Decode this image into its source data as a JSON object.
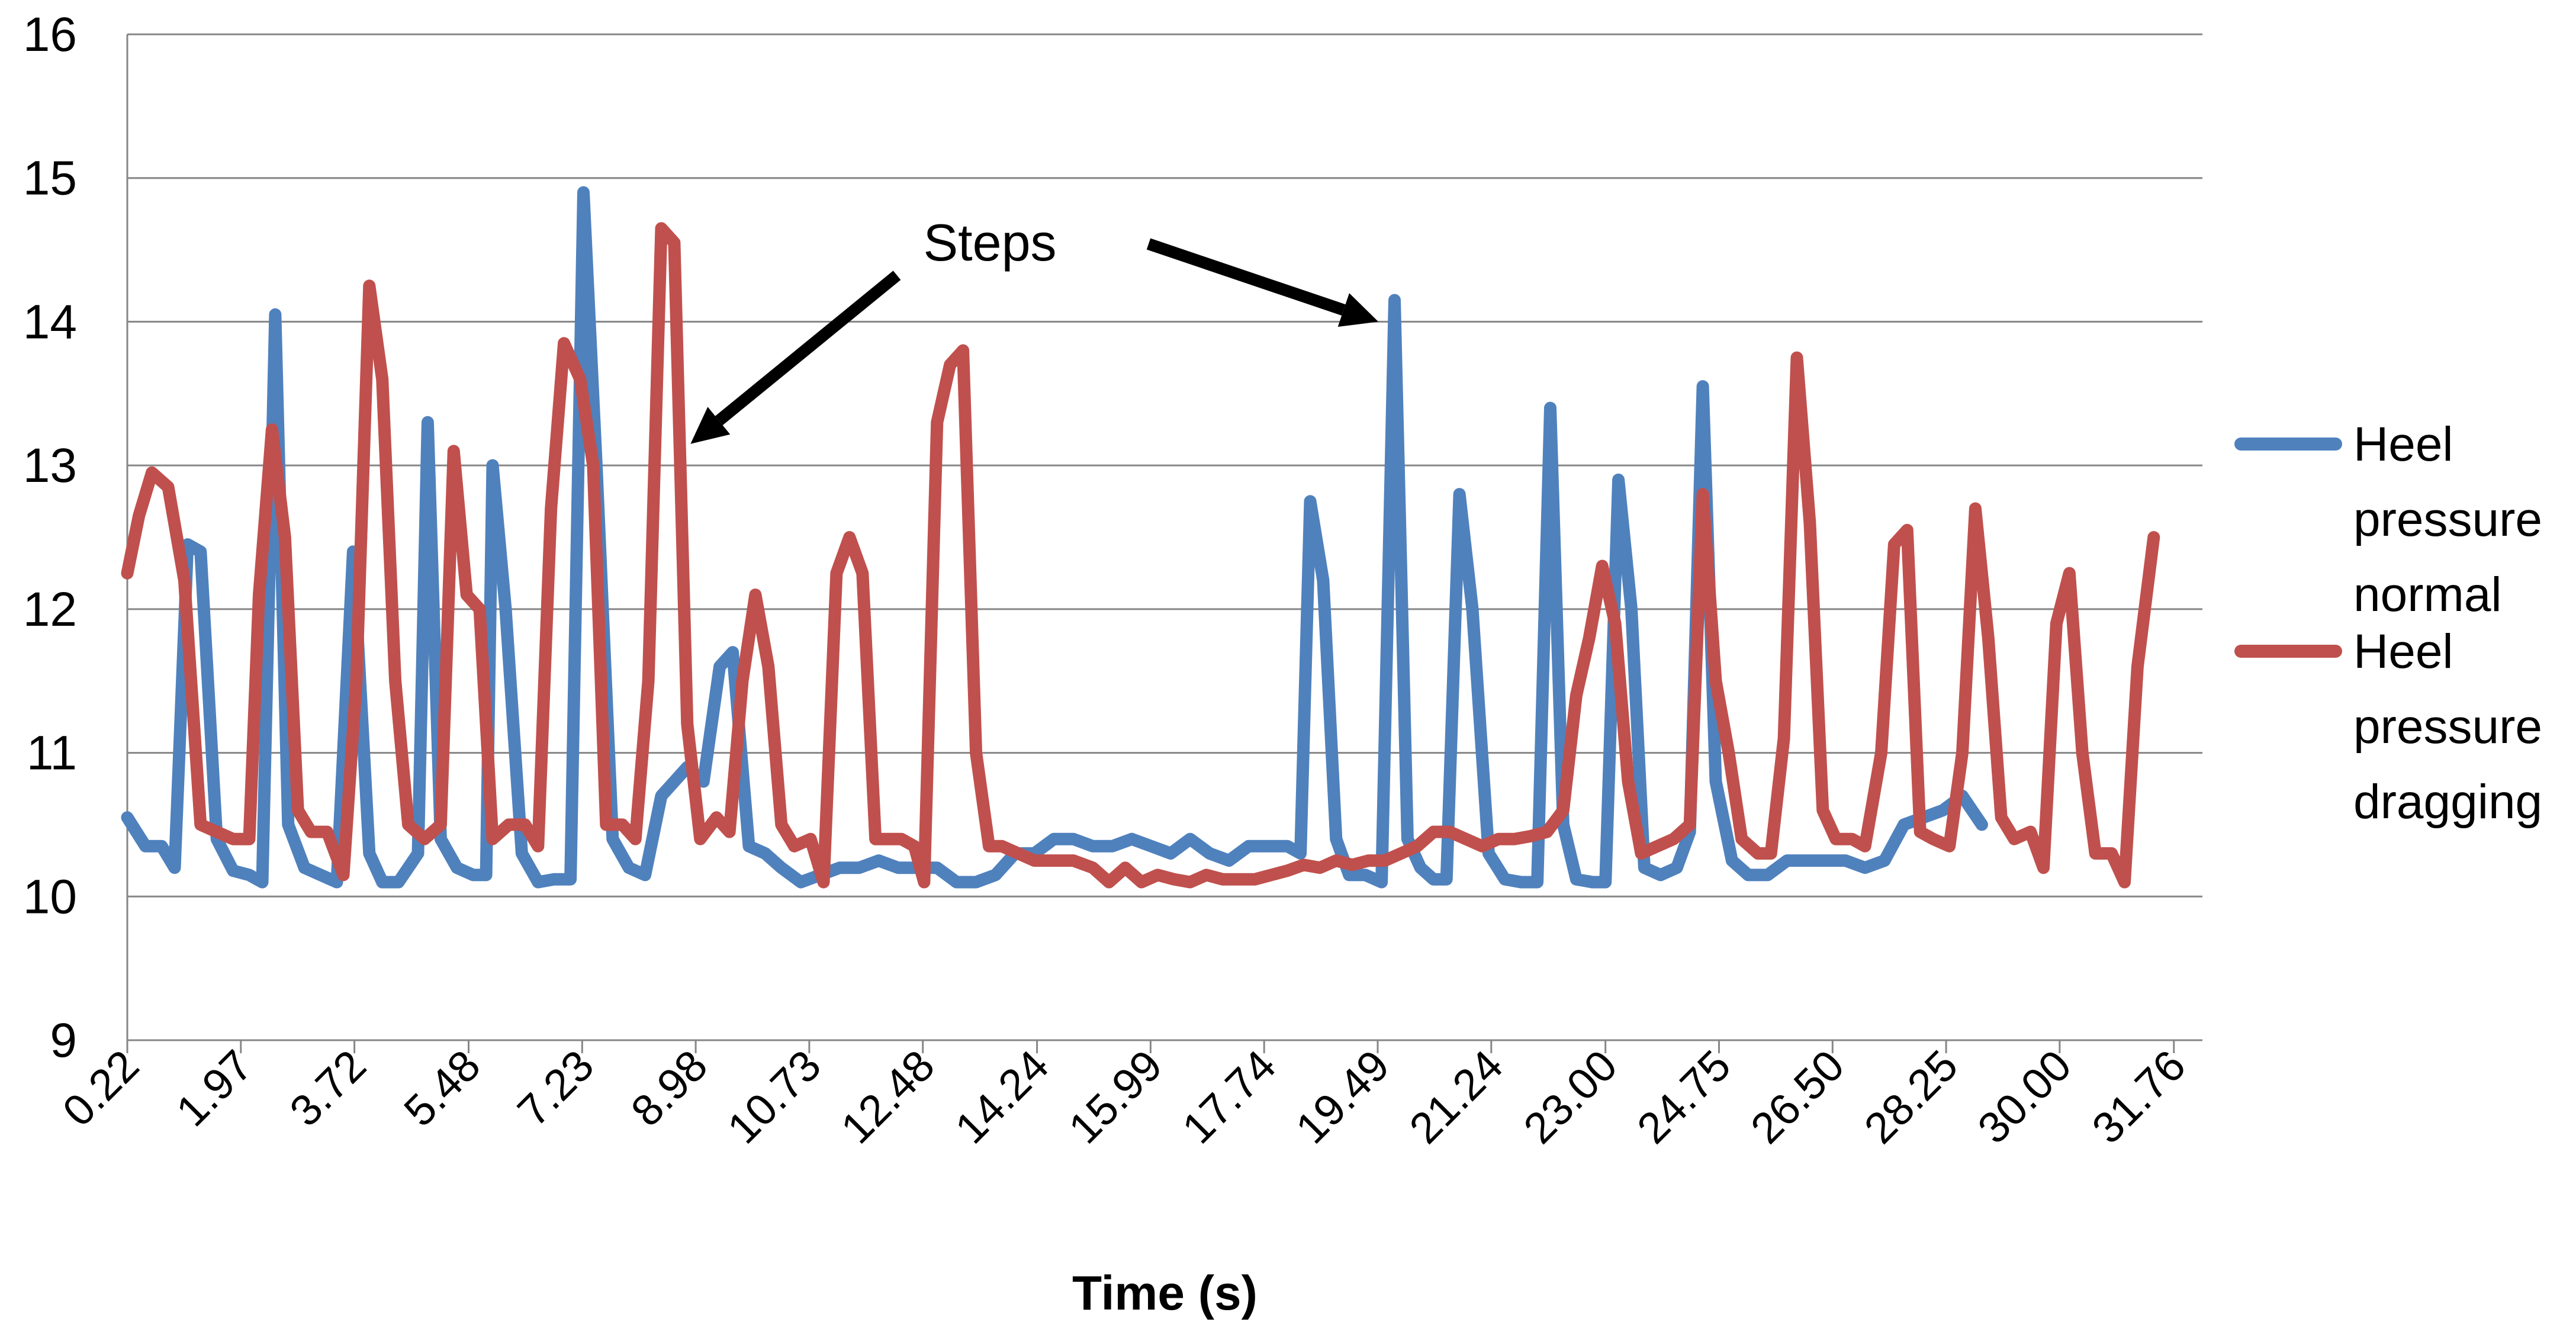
{
  "chart_data": {
    "type": "line",
    "title": "",
    "xlabel": "Time (s)",
    "ylabel": "",
    "ylim": [
      9,
      16
    ],
    "yticks": [
      "9",
      "10",
      "11",
      "12",
      "13",
      "14",
      "15",
      "16"
    ],
    "xlim": [
      0.22,
      32.2
    ],
    "xtick_values": [
      0.22,
      1.97,
      3.72,
      5.48,
      7.23,
      8.98,
      10.73,
      12.48,
      14.24,
      15.99,
      17.74,
      19.49,
      21.24,
      23.0,
      24.75,
      26.5,
      28.25,
      30.0,
      31.76
    ],
    "xtick_labels": [
      "0.22",
      "1.97",
      "3.72",
      "5.48",
      "7.23",
      "8.98",
      "10.73",
      "12.48",
      "14.24",
      "15.99",
      "17.74",
      "19.49",
      "21.24",
      "23.00",
      "24.75",
      "26.50",
      "28.25",
      "30.00",
      "31.76"
    ],
    "grid": "horizontal",
    "legend_position": "right",
    "annotation": {
      "text": "Steps",
      "targets": [
        [
          8.9,
          13.15
        ],
        [
          19.5,
          14.0
        ]
      ]
    },
    "series": [
      {
        "name": "Heel pressure normal",
        "legend_label_lines": [
          "Heel",
          "pressure",
          "normal"
        ],
        "color": "#4F81BD",
        "points": [
          [
            0.22,
            10.55
          ],
          [
            0.5,
            10.35
          ],
          [
            0.75,
            10.35
          ],
          [
            0.95,
            10.2
          ],
          [
            1.15,
            12.45
          ],
          [
            1.35,
            12.4
          ],
          [
            1.6,
            10.4
          ],
          [
            1.85,
            10.18
          ],
          [
            2.1,
            10.15
          ],
          [
            2.3,
            10.1
          ],
          [
            2.5,
            14.05
          ],
          [
            2.7,
            10.5
          ],
          [
            2.95,
            10.2
          ],
          [
            3.2,
            10.15
          ],
          [
            3.45,
            10.1
          ],
          [
            3.7,
            12.4
          ],
          [
            3.95,
            10.3
          ],
          [
            4.15,
            10.1
          ],
          [
            4.4,
            10.1
          ],
          [
            4.7,
            10.3
          ],
          [
            4.85,
            13.3
          ],
          [
            5.05,
            10.4
          ],
          [
            5.3,
            10.2
          ],
          [
            5.55,
            10.15
          ],
          [
            5.75,
            10.15
          ],
          [
            5.85,
            13.0
          ],
          [
            6.05,
            12.0
          ],
          [
            6.3,
            10.3
          ],
          [
            6.55,
            10.1
          ],
          [
            6.8,
            10.12
          ],
          [
            7.05,
            10.12
          ],
          [
            7.25,
            14.9
          ],
          [
            7.45,
            13.0
          ],
          [
            7.7,
            10.4
          ],
          [
            7.95,
            10.2
          ],
          [
            8.2,
            10.15
          ],
          [
            8.45,
            10.7
          ],
          [
            8.65,
            10.8
          ],
          [
            8.85,
            10.9
          ],
          [
            9.1,
            10.8
          ],
          [
            9.35,
            11.6
          ],
          [
            9.55,
            11.7
          ],
          [
            9.8,
            10.35
          ],
          [
            10.05,
            10.3
          ],
          [
            10.3,
            10.2
          ],
          [
            10.6,
            10.1
          ],
          [
            10.9,
            10.15
          ],
          [
            11.2,
            10.2
          ],
          [
            11.5,
            10.2
          ],
          [
            11.8,
            10.25
          ],
          [
            12.1,
            10.2
          ],
          [
            12.4,
            10.2
          ],
          [
            12.7,
            10.2
          ],
          [
            13.0,
            10.1
          ],
          [
            13.3,
            10.1
          ],
          [
            13.6,
            10.15
          ],
          [
            13.9,
            10.3
          ],
          [
            14.2,
            10.3
          ],
          [
            14.5,
            10.4
          ],
          [
            14.8,
            10.4
          ],
          [
            15.1,
            10.35
          ],
          [
            15.4,
            10.35
          ],
          [
            15.7,
            10.4
          ],
          [
            16.0,
            10.35
          ],
          [
            16.3,
            10.3
          ],
          [
            16.6,
            10.4
          ],
          [
            16.9,
            10.3
          ],
          [
            17.2,
            10.25
          ],
          [
            17.5,
            10.35
          ],
          [
            17.8,
            10.35
          ],
          [
            18.1,
            10.35
          ],
          [
            18.3,
            10.3
          ],
          [
            18.45,
            12.75
          ],
          [
            18.65,
            12.2
          ],
          [
            18.85,
            10.4
          ],
          [
            19.05,
            10.15
          ],
          [
            19.3,
            10.15
          ],
          [
            19.55,
            10.1
          ],
          [
            19.75,
            14.15
          ],
          [
            19.95,
            10.4
          ],
          [
            20.15,
            10.2
          ],
          [
            20.35,
            10.12
          ],
          [
            20.55,
            10.12
          ],
          [
            20.75,
            12.8
          ],
          [
            20.95,
            12.0
          ],
          [
            21.2,
            10.3
          ],
          [
            21.45,
            10.12
          ],
          [
            21.7,
            10.1
          ],
          [
            21.95,
            10.1
          ],
          [
            22.15,
            13.4
          ],
          [
            22.35,
            10.5
          ],
          [
            22.55,
            10.12
          ],
          [
            22.8,
            10.1
          ],
          [
            23.0,
            10.1
          ],
          [
            23.2,
            12.9
          ],
          [
            23.4,
            12.0
          ],
          [
            23.6,
            10.2
          ],
          [
            23.85,
            10.15
          ],
          [
            24.1,
            10.2
          ],
          [
            24.3,
            10.45
          ],
          [
            24.5,
            13.55
          ],
          [
            24.7,
            10.8
          ],
          [
            24.95,
            10.25
          ],
          [
            25.2,
            10.15
          ],
          [
            25.5,
            10.15
          ],
          [
            25.8,
            10.25
          ],
          [
            26.1,
            10.25
          ],
          [
            26.4,
            10.25
          ],
          [
            26.7,
            10.25
          ],
          [
            27.0,
            10.2
          ],
          [
            27.3,
            10.25
          ],
          [
            27.6,
            10.5
          ],
          [
            27.9,
            10.55
          ],
          [
            28.2,
            10.6
          ],
          [
            28.5,
            10.7
          ],
          [
            28.8,
            10.5
          ]
        ]
      },
      {
        "name": "Heel pressure dragging",
        "legend_label_lines": [
          "Heel",
          "pressure",
          "dragging"
        ],
        "color": "#C0504D",
        "points": [
          [
            0.22,
            12.25
          ],
          [
            0.4,
            12.65
          ],
          [
            0.6,
            12.95
          ],
          [
            0.85,
            12.85
          ],
          [
            1.1,
            12.2
          ],
          [
            1.35,
            10.5
          ],
          [
            1.6,
            10.45
          ],
          [
            1.85,
            10.4
          ],
          [
            2.1,
            10.4
          ],
          [
            2.25,
            12.1
          ],
          [
            2.45,
            13.25
          ],
          [
            2.65,
            12.5
          ],
          [
            2.85,
            10.6
          ],
          [
            3.05,
            10.45
          ],
          [
            3.3,
            10.45
          ],
          [
            3.55,
            10.15
          ],
          [
            3.75,
            11.5
          ],
          [
            3.95,
            14.25
          ],
          [
            4.15,
            13.6
          ],
          [
            4.35,
            11.5
          ],
          [
            4.55,
            10.5
          ],
          [
            4.8,
            10.4
          ],
          [
            5.05,
            10.5
          ],
          [
            5.25,
            13.1
          ],
          [
            5.45,
            12.1
          ],
          [
            5.65,
            12.0
          ],
          [
            5.85,
            10.4
          ],
          [
            6.1,
            10.5
          ],
          [
            6.35,
            10.5
          ],
          [
            6.55,
            10.35
          ],
          [
            6.75,
            12.7
          ],
          [
            6.95,
            13.85
          ],
          [
            7.2,
            13.6
          ],
          [
            7.4,
            13.0
          ],
          [
            7.6,
            10.5
          ],
          [
            7.85,
            10.5
          ],
          [
            8.05,
            10.4
          ],
          [
            8.25,
            11.5
          ],
          [
            8.45,
            14.65
          ],
          [
            8.65,
            14.55
          ],
          [
            8.85,
            11.2
          ],
          [
            9.05,
            10.4
          ],
          [
            9.3,
            10.55
          ],
          [
            9.5,
            10.45
          ],
          [
            9.7,
            11.5
          ],
          [
            9.9,
            12.1
          ],
          [
            10.1,
            11.6
          ],
          [
            10.3,
            10.5
          ],
          [
            10.5,
            10.35
          ],
          [
            10.75,
            10.4
          ],
          [
            10.95,
            10.1
          ],
          [
            11.15,
            12.25
          ],
          [
            11.35,
            12.5
          ],
          [
            11.55,
            12.25
          ],
          [
            11.75,
            10.4
          ],
          [
            11.95,
            10.4
          ],
          [
            12.15,
            10.4
          ],
          [
            12.35,
            10.35
          ],
          [
            12.5,
            10.1
          ],
          [
            12.7,
            13.3
          ],
          [
            12.9,
            13.7
          ],
          [
            13.1,
            13.8
          ],
          [
            13.3,
            11.0
          ],
          [
            13.5,
            10.35
          ],
          [
            13.7,
            10.35
          ],
          [
            13.95,
            10.3
          ],
          [
            14.2,
            10.25
          ],
          [
            14.5,
            10.25
          ],
          [
            14.8,
            10.25
          ],
          [
            15.1,
            10.2
          ],
          [
            15.35,
            10.1
          ],
          [
            15.6,
            10.2
          ],
          [
            15.85,
            10.1
          ],
          [
            16.1,
            10.15
          ],
          [
            16.35,
            10.12
          ],
          [
            16.6,
            10.1
          ],
          [
            16.85,
            10.15
          ],
          [
            17.1,
            10.12
          ],
          [
            17.35,
            10.12
          ],
          [
            17.6,
            10.12
          ],
          [
            17.85,
            10.15
          ],
          [
            18.1,
            10.18
          ],
          [
            18.35,
            10.22
          ],
          [
            18.6,
            10.2
          ],
          [
            18.85,
            10.25
          ],
          [
            19.1,
            10.22
          ],
          [
            19.35,
            10.25
          ],
          [
            19.6,
            10.25
          ],
          [
            19.85,
            10.3
          ],
          [
            20.1,
            10.35
          ],
          [
            20.35,
            10.45
          ],
          [
            20.6,
            10.45
          ],
          [
            20.85,
            10.4
          ],
          [
            21.1,
            10.35
          ],
          [
            21.35,
            10.4
          ],
          [
            21.6,
            10.4
          ],
          [
            21.85,
            10.42
          ],
          [
            22.1,
            10.45
          ],
          [
            22.35,
            10.6
          ],
          [
            22.55,
            11.4
          ],
          [
            22.75,
            11.8
          ],
          [
            22.95,
            12.3
          ],
          [
            23.15,
            11.9
          ],
          [
            23.35,
            10.8
          ],
          [
            23.55,
            10.3
          ],
          [
            23.8,
            10.35
          ],
          [
            24.05,
            10.4
          ],
          [
            24.3,
            10.5
          ],
          [
            24.5,
            12.8
          ],
          [
            24.7,
            11.5
          ],
          [
            24.9,
            11.0
          ],
          [
            25.1,
            10.4
          ],
          [
            25.35,
            10.3
          ],
          [
            25.55,
            10.3
          ],
          [
            25.75,
            11.1
          ],
          [
            25.95,
            13.75
          ],
          [
            26.15,
            12.6
          ],
          [
            26.35,
            10.6
          ],
          [
            26.55,
            10.4
          ],
          [
            26.8,
            10.4
          ],
          [
            27.0,
            10.35
          ],
          [
            27.25,
            11.0
          ],
          [
            27.45,
            12.45
          ],
          [
            27.65,
            12.55
          ],
          [
            27.85,
            10.45
          ],
          [
            28.05,
            10.4
          ],
          [
            28.3,
            10.35
          ],
          [
            28.5,
            11.0
          ],
          [
            28.7,
            12.7
          ],
          [
            28.9,
            11.8
          ],
          [
            29.1,
            10.55
          ],
          [
            29.3,
            10.4
          ],
          [
            29.55,
            10.45
          ],
          [
            29.75,
            10.2
          ],
          [
            29.95,
            11.9
          ],
          [
            30.15,
            12.25
          ],
          [
            30.35,
            11.0
          ],
          [
            30.55,
            10.3
          ],
          [
            30.8,
            10.3
          ],
          [
            31.0,
            10.1
          ],
          [
            31.2,
            11.6
          ],
          [
            31.45,
            12.5
          ]
        ]
      }
    ]
  }
}
